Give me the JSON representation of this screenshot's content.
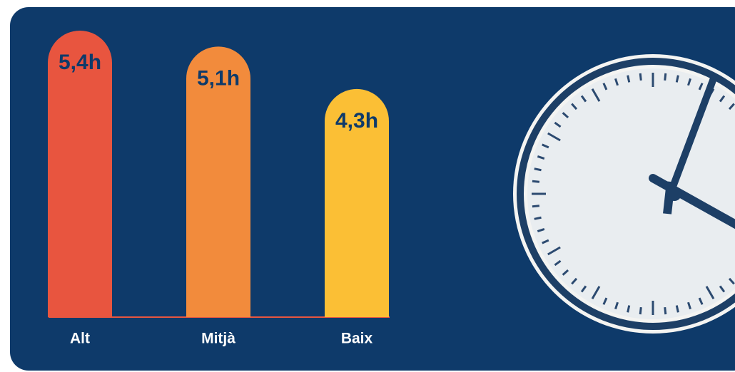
{
  "chart_data": {
    "type": "bar",
    "categories": [
      "Alt",
      "Mitjà",
      "Baix"
    ],
    "values": [
      5.4,
      5.1,
      4.3
    ],
    "value_labels": [
      "5,4h",
      "5,1h",
      "4,3h"
    ],
    "colors": [
      "#e8553f",
      "#f28b3c",
      "#fbbf35"
    ]
  }
}
